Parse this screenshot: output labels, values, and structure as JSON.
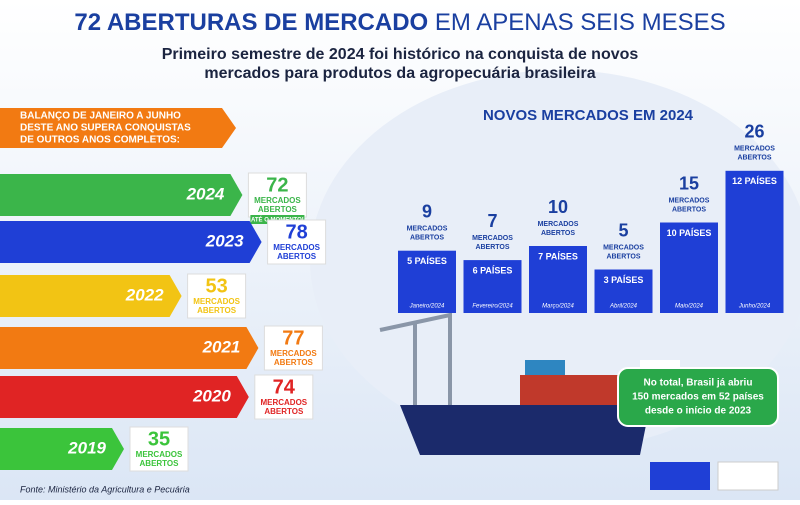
{
  "header": {
    "title_bold": "72 ABERTURAS DE MERCADO",
    "title_light": "EM APENAS SEIS MESES",
    "subtitle": [
      "Primeiro semestre de 2024 foi histórico na conquista de novos",
      "mercados para produtos da agropecuária brasileira"
    ]
  },
  "intro": [
    "BALANÇO DE JANEIRO A JUNHO",
    "DESTE ANO SUPERA CONQUISTAS",
    "DE OUTROS ANOS COMPLETOS:"
  ],
  "chart_data": [
    {
      "type": "hbar",
      "categories": [
        "2024",
        "2023",
        "2022",
        "2021",
        "2020",
        "2019"
      ],
      "values": [
        72,
        78,
        53,
        77,
        74,
        35
      ],
      "colors": [
        "#3bb54a",
        "#1f3fd6",
        "#f2c414",
        "#f27a12",
        "#e02424",
        "#3bc43b"
      ],
      "value_caption": [
        "MERCADOS",
        "ABERTOS"
      ],
      "note": "ATÉ O MOMENTO!"
    },
    {
      "type": "bar",
      "title": "NOVOS MERCADOS EM 2024",
      "categories": [
        "Janeiro/2024",
        "Fevereiro/2024",
        "Março/2024",
        "Abril/2024",
        "Maio/2024",
        "Junho/2024"
      ],
      "values": [
        9,
        7,
        10,
        5,
        15,
        26
      ],
      "color": "#1f3fd6",
      "value_caption": [
        "MERCADOS",
        "ABERTOS"
      ],
      "country_labels": [
        "5 PAÍSES",
        "6 PAÍSES",
        "7 PAÍSES",
        "3 PAÍSES",
        "10 PAÍSES",
        "12 PAÍSES"
      ]
    }
  ],
  "total_note": [
    "No total, Brasil já abriu",
    "150 mercados em 52 países",
    "desde o início de 2023"
  ],
  "source": "Fonte: Ministério da Agricultura e Pecuária"
}
